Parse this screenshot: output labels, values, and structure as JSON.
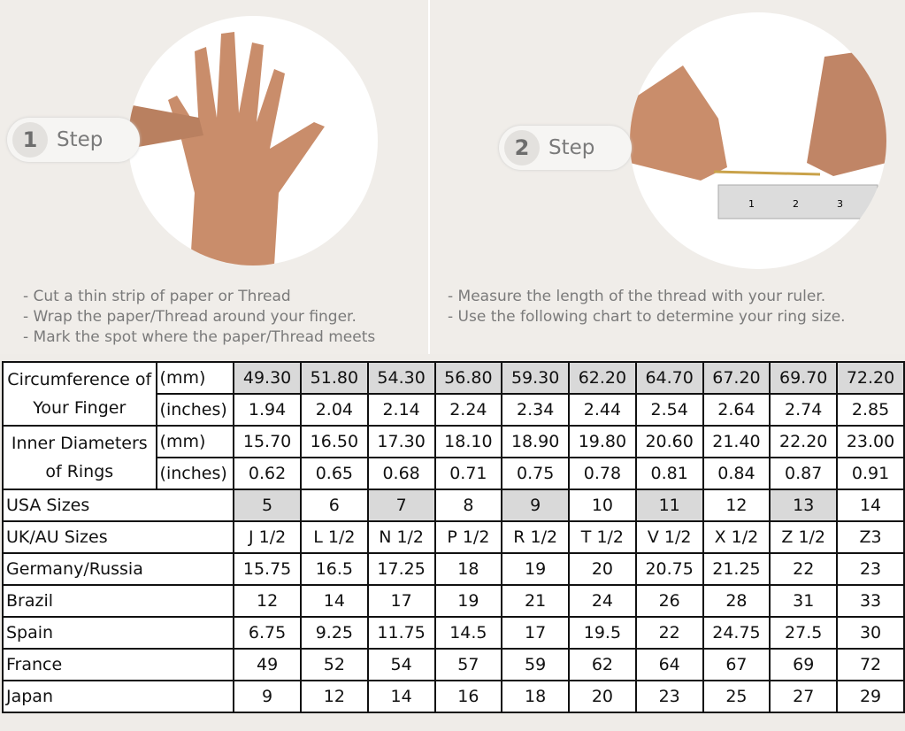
{
  "step1": {
    "number": "1",
    "label": "Step",
    "instructions": [
      "- Cut a thin strip of paper or Thread",
      "- Wrap the paper/Thread around your finger.",
      "- Mark the spot where the paper/Thread meets"
    ]
  },
  "step2": {
    "number": "2",
    "label": "Step",
    "instructions": [
      "- Measure the length of the thread with your ruler.",
      "- Use the following chart to determine your ring size."
    ]
  },
  "table": {
    "circumference_label": "Circumference of Your Finger",
    "diameter_label": "Inner Diameters of Rings",
    "unit_mm": "(mm)",
    "unit_in": "(inches)",
    "circ_mm": [
      "49.30",
      "51.80",
      "54.30",
      "56.80",
      "59.30",
      "62.20",
      "64.70",
      "67.20",
      "69.70",
      "72.20"
    ],
    "circ_in": [
      "1.94",
      "2.04",
      "2.14",
      "2.24",
      "2.34",
      "2.44",
      "2.54",
      "2.64",
      "2.74",
      "2.85"
    ],
    "diam_mm": [
      "15.70",
      "16.50",
      "17.30",
      "18.10",
      "18.90",
      "19.80",
      "20.60",
      "21.40",
      "22.20",
      "23.00"
    ],
    "diam_in": [
      "0.62",
      "0.65",
      "0.68",
      "0.71",
      "0.75",
      "0.78",
      "0.81",
      "0.84",
      "0.87",
      "0.91"
    ],
    "rows": [
      {
        "label": "USA Sizes",
        "values": [
          "5",
          "6",
          "7",
          "8",
          "9",
          "10",
          "11",
          "12",
          "13",
          "14"
        ]
      },
      {
        "label": "UK/AU Sizes",
        "values": [
          "J 1/2",
          "L 1/2",
          "N 1/2",
          "P 1/2",
          "R 1/2",
          "T 1/2",
          "V 1/2",
          "X 1/2",
          "Z 1/2",
          "Z3"
        ]
      },
      {
        "label": "Germany/Russia",
        "values": [
          "15.75",
          "16.5",
          "17.25",
          "18",
          "19",
          "20",
          "20.75",
          "21.25",
          "22",
          "23"
        ]
      },
      {
        "label": "Brazil",
        "values": [
          "12",
          "14",
          "17",
          "19",
          "21",
          "24",
          "26",
          "28",
          "31",
          "33"
        ]
      },
      {
        "label": "Spain",
        "values": [
          "6.75",
          "9.25",
          "11.75",
          "14.5",
          "17",
          "19.5",
          "22",
          "24.75",
          "27.5",
          "30"
        ]
      },
      {
        "label": "France",
        "values": [
          "49",
          "52",
          "54",
          "57",
          "59",
          "62",
          "64",
          "67",
          "69",
          "72"
        ]
      },
      {
        "label": "Japan",
        "values": [
          "9",
          "12",
          "14",
          "16",
          "18",
          "20",
          "23",
          "25",
          "27",
          "29"
        ]
      }
    ]
  },
  "ruler": {
    "ticks": [
      "1",
      "2",
      "3"
    ]
  }
}
